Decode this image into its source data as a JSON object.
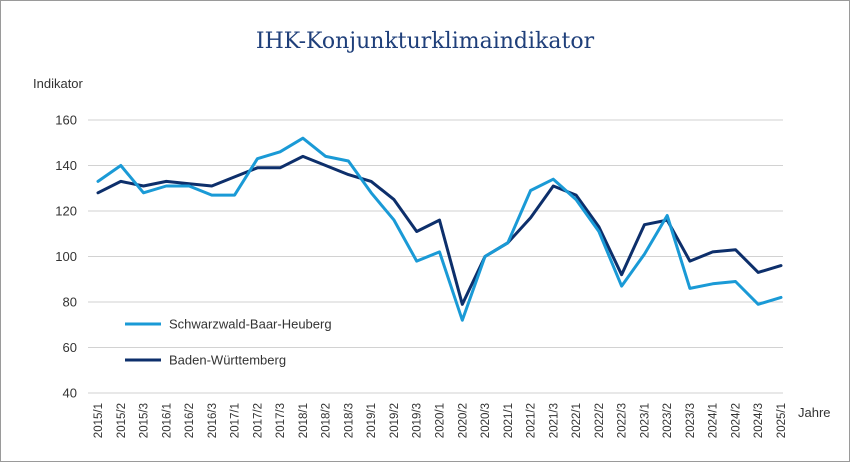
{
  "chart_data": {
    "type": "line",
    "title": "IHK-Konjunkturklimaindikator",
    "ylabel": "Indikator",
    "xlabel": "Jahre",
    "ylim": [
      40,
      160
    ],
    "yticks": [
      40,
      60,
      80,
      100,
      120,
      140,
      160
    ],
    "grid": true,
    "legend_position": "bottom-left",
    "categories": [
      "2015/1",
      "2015/2",
      "2015/3",
      "2016/1",
      "2016/2",
      "2016/3",
      "2017/1",
      "2017/2",
      "2017/3",
      "2018/1",
      "2018/2",
      "2018/3",
      "2019/1",
      "2019/2",
      "2019/3",
      "2020/1",
      "2020/2",
      "2020/3",
      "2021/1",
      "2021/2",
      "2021/3",
      "2022/1",
      "2022/2",
      "2022/3",
      "2023/1",
      "2023/2",
      "2023/3",
      "2024/1",
      "2024/2",
      "2024/3",
      "2025/1"
    ],
    "series": [
      {
        "name": "Schwarzwald-Baar-Heuberg",
        "color": "#1a9ad6",
        "values": [
          133,
          140,
          128,
          131,
          131,
          127,
          127,
          143,
          146,
          152,
          144,
          142,
          128,
          116,
          98,
          102,
          72,
          100,
          106,
          129,
          134,
          125,
          111,
          87,
          101,
          118,
          86,
          88,
          89,
          79,
          82
        ]
      },
      {
        "name": "Baden-Württemberg",
        "color": "#0d2f6b",
        "values": [
          128,
          133,
          131,
          133,
          132,
          131,
          135,
          139,
          139,
          144,
          140,
          136,
          133,
          125,
          111,
          116,
          79,
          100,
          106,
          117,
          131,
          127,
          113,
          92,
          114,
          116,
          98,
          102,
          103,
          93,
          96
        ]
      }
    ]
  }
}
